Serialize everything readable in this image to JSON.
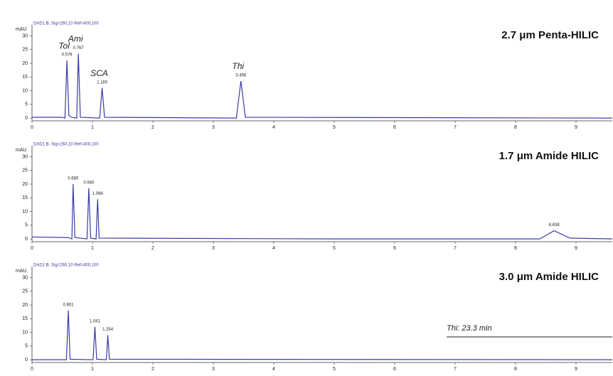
{
  "chart_data": [
    {
      "type": "line",
      "title": "2.7 μm Penta-HILIC",
      "subtitle": "DAD1 B, Sig=260,10 Ref=400,100",
      "y_label": "mAU",
      "xlim": [
        0,
        9.6
      ],
      "ylim": [
        -1,
        34
      ],
      "xticks": [
        0,
        1,
        2,
        3,
        4,
        5,
        6,
        7,
        8,
        9
      ],
      "yticks": [
        0,
        5,
        10,
        15,
        20,
        25,
        30
      ],
      "series": [
        {
          "color": "#3b3ba6",
          "x": [
            0,
            0.5,
            0.545,
            0.578,
            0.61,
            0.65,
            0.74,
            0.767,
            0.8,
            1.12,
            1.16,
            1.2,
            3.38,
            3.456,
            3.53,
            9.6
          ],
          "values": [
            0.3,
            0.3,
            0,
            21,
            1,
            0.3,
            0,
            23.5,
            0.3,
            0,
            11,
            0.3,
            0,
            13.5,
            0.3,
            0
          ]
        }
      ],
      "peaks": [
        {
          "name": "Tol",
          "rt": 0.578
        },
        {
          "name": "Ami",
          "rt": 0.767
        },
        {
          "name": "SCA",
          "rt": {
            "value": 1.16,
            "label": "1.160"
          }
        },
        {
          "name": "Thi",
          "rt": 3.456
        }
      ]
    },
    {
      "type": "line",
      "title": "1.7 μm Amide HILIC",
      "subtitle": "DAD1 B, Sig=260,10 Ref=400,100",
      "y_label": "mAU",
      "xlim": [
        0,
        9.6
      ],
      "ylim": [
        -1,
        34
      ],
      "xticks": [
        0,
        1,
        2,
        3,
        4,
        5,
        6,
        7,
        8,
        9
      ],
      "yticks": [
        0,
        5,
        10,
        15,
        20,
        25,
        30
      ],
      "series": [
        {
          "color": "#3b3ba6",
          "x": [
            0,
            0.6,
            0.66,
            0.68,
            0.71,
            0.91,
            0.94,
            0.97,
            1.06,
            1.086,
            1.11,
            5,
            8.4,
            8.638,
            8.9,
            9.6
          ],
          "values": [
            0.7,
            0.5,
            0,
            20,
            0.5,
            0,
            18.5,
            0.3,
            0,
            14.5,
            0.3,
            0,
            0,
            3,
            0.3,
            0
          ]
        }
      ],
      "peaks": [
        {
          "rt": {
            "value": 0.68,
            "label": "0.680"
          }
        },
        {
          "rt": {
            "value": 0.94,
            "label": "0.940"
          }
        },
        {
          "rt": 1.086
        },
        {
          "rt": 8.638
        }
      ]
    },
    {
      "type": "line",
      "title": "3.0 μm Amide HILIC",
      "subtitle": "DAD1 B, Sig=260,10 Ref=400,100",
      "y_label": "mAU",
      "xlim": [
        0,
        9.6
      ],
      "ylim": [
        -1,
        34
      ],
      "xticks": [
        0,
        1,
        2,
        3,
        4,
        5,
        6,
        7,
        8,
        9
      ],
      "yticks": [
        0,
        5,
        10,
        15,
        20,
        25,
        30
      ],
      "series": [
        {
          "color": "#3b3ba6",
          "x": [
            0,
            0.57,
            0.601,
            0.63,
            1.01,
            1.041,
            1.07,
            1.23,
            1.254,
            1.28,
            9.6
          ],
          "values": [
            0,
            0,
            18,
            0.2,
            0,
            12,
            0.2,
            0,
            9,
            0.2,
            0
          ]
        }
      ],
      "peaks": [
        {
          "rt": 0.601
        },
        {
          "rt": 1.041
        },
        {
          "rt": 1.254
        }
      ],
      "annotation": "Thi: 23.3 min"
    }
  ]
}
